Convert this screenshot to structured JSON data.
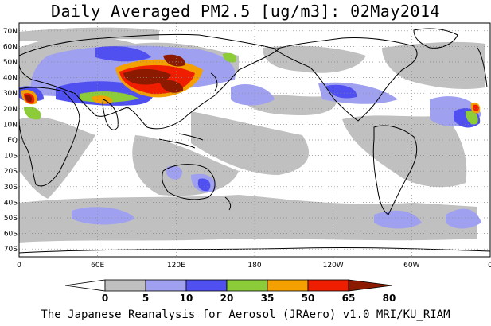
{
  "title": "Daily Averaged PM2.5 [ug/m3]: 02May2014",
  "credit": "The Japanese Reanalysis for Aerosol (JRAero) v1.0 MRI/KU_RIAM",
  "axes": {
    "lat_labels": [
      "70N",
      "60N",
      "50N",
      "40N",
      "30N",
      "20N",
      "10N",
      "EQ",
      "10S",
      "20S",
      "30S",
      "40S",
      "50S",
      "60S",
      "70S"
    ],
    "lon_labels": [
      "0",
      "60E",
      "120E",
      "180",
      "120W",
      "60W",
      "0"
    ]
  },
  "legend": {
    "tick_labels": [
      "0",
      "5",
      "10",
      "20",
      "35",
      "50",
      "65",
      "80"
    ],
    "colors": [
      "#ffffff",
      "#c0c0c0",
      "#a0a0f0",
      "#5050f0",
      "#8ccc38",
      "#f4a000",
      "#f01e00",
      "#8c1a00"
    ]
  },
  "chart_data": {
    "type": "heatmap",
    "title": "Daily Averaged PM2.5 [ug/m3]: 02May2014",
    "variable": "PM2.5",
    "units": "ug/m3",
    "date": "02May2014",
    "lon_range": [
      0,
      360
    ],
    "lat_range": [
      -75,
      75
    ],
    "bins": [
      0,
      5,
      10,
      20,
      35,
      50,
      65,
      80
    ],
    "bin_colors": [
      "#ffffff",
      "#c0c0c0",
      "#a0a0f0",
      "#5050f0",
      "#8ccc38",
      "#f4a000",
      "#f01e00",
      "#8c1a00"
    ],
    "grid": true
  }
}
